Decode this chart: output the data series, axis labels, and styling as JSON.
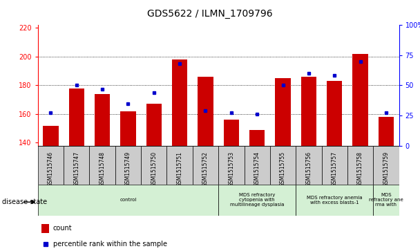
{
  "title": "GDS5622 / ILMN_1709796",
  "samples": [
    "GSM1515746",
    "GSM1515747",
    "GSM1515748",
    "GSM1515749",
    "GSM1515750",
    "GSM1515751",
    "GSM1515752",
    "GSM1515753",
    "GSM1515754",
    "GSM1515755",
    "GSM1515756",
    "GSM1515757",
    "GSM1515758",
    "GSM1515759"
  ],
  "counts": [
    152,
    178,
    174,
    162,
    167,
    198,
    186,
    156,
    149,
    185,
    186,
    183,
    202,
    158
  ],
  "percentiles": [
    27,
    50,
    47,
    35,
    44,
    68,
    29,
    27,
    26,
    50,
    60,
    58,
    70,
    27
  ],
  "ymin": 138,
  "ymax": 222,
  "y_left_ticks": [
    140,
    160,
    180,
    200,
    220
  ],
  "y_right_ticks": [
    0,
    25,
    50,
    75,
    100
  ],
  "bar_color": "#cc0000",
  "dot_color": "#0000cc",
  "tick_area_color": "#cccccc",
  "disease_groups": [
    {
      "label": "control",
      "start": 0,
      "end": 7
    },
    {
      "label": "MDS refractory\ncytopenia with\nmultilineage dysplasia",
      "start": 7,
      "end": 10
    },
    {
      "label": "MDS refractory anemia\nwith excess blasts-1",
      "start": 10,
      "end": 13
    },
    {
      "label": "MDS\nrefractory ane\nrma with",
      "start": 13,
      "end": 14
    }
  ],
  "disease_group_color": "#d4f0d4",
  "legend_count_label": "count",
  "legend_pct_label": "percentile rank within the sample",
  "disease_state_label": "disease state"
}
